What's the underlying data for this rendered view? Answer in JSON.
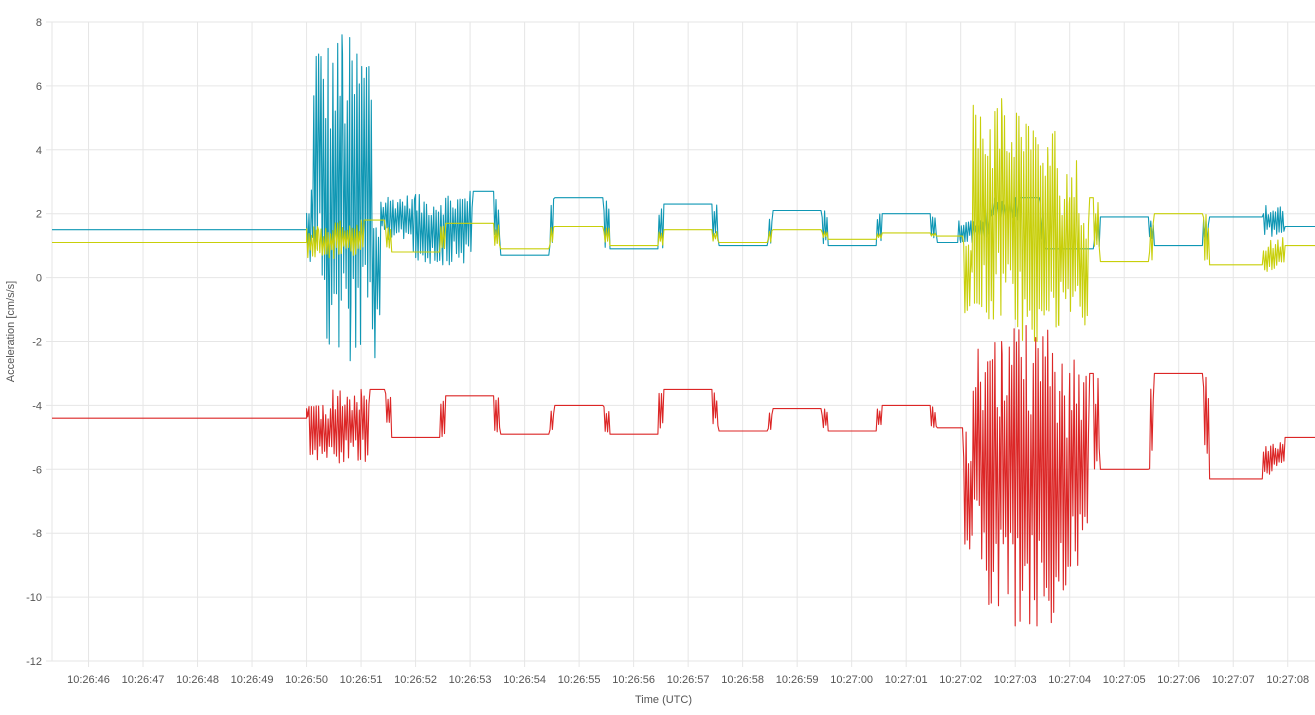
{
  "chart_data": {
    "type": "line",
    "xlabel": "Time (UTC)",
    "ylabel": "Acceleration [cm/s/s]",
    "ylim": [
      -12,
      8
    ],
    "xlim": [
      "10:26:45.33",
      "10:27:08.50"
    ],
    "y_ticks": [
      8,
      6,
      4,
      2,
      0,
      -2,
      -4,
      -6,
      -8,
      -10,
      -12
    ],
    "y_tick_labels": [
      "8",
      "6",
      "4",
      "2",
      "0",
      "-2",
      "-4",
      "-6",
      "-8",
      "-10",
      "-12"
    ],
    "x_tick_labels": [
      "10:26:46",
      "10:26:47",
      "10:26:48",
      "10:26:49",
      "10:26:50",
      "10:26:51",
      "10:26:52",
      "10:26:53",
      "10:26:54",
      "10:26:55",
      "10:26:56",
      "10:26:57",
      "10:26:58",
      "10:26:59",
      "10:27:00",
      "10:27:01",
      "10:27:02",
      "10:27:03",
      "10:27:04",
      "10:27:05",
      "10:27:06",
      "10:27:07",
      "10:27:08"
    ],
    "grid": true,
    "legend": "none",
    "series": [
      {
        "color": "#0f97b4",
        "x": [
          "10:26:45.33",
          "10:26:50.00",
          "10:26:50.20",
          "10:26:50.40",
          "10:26:50.60",
          "10:26:50.65",
          "10:26:50.80",
          "10:26:51.00",
          "10:26:51.50",
          "10:26:52.00",
          "10:26:52.50",
          "10:26:53.00",
          "10:26:54.00",
          "10:26:55.00",
          "10:26:56.00",
          "10:26:57.00",
          "10:26:58.00",
          "10:26:59.00",
          "10:27:00.00",
          "10:27:01.00",
          "10:27:02.00",
          "10:27:02.50",
          "10:27:03.00",
          "10:27:04.00",
          "10:27:05.00",
          "10:27:06.00",
          "10:27:07.00",
          "10:27:08.50"
        ],
        "values": [
          1.5,
          1.5,
          2.2,
          0.5,
          3.0,
          7.6,
          -2.6,
          2.5,
          1.2,
          2.6,
          0.4,
          2.7,
          0.7,
          2.5,
          0.9,
          2.3,
          1.0,
          2.1,
          1.0,
          2.0,
          1.1,
          1.8,
          2.5,
          0.9,
          1.9,
          1.0,
          1.9,
          1.6
        ]
      },
      {
        "color": "#c8cf0a",
        "x": [
          "10:26:45.33",
          "10:26:50.00",
          "10:26:50.20",
          "10:26:50.50",
          "10:26:51.00",
          "10:26:52.00",
          "10:26:53.00",
          "10:26:54.00",
          "10:26:55.00",
          "10:26:56.00",
          "10:26:57.00",
          "10:26:58.00",
          "10:26:59.00",
          "10:27:00.00",
          "10:27:01.00",
          "10:27:02.00",
          "10:27:02.60",
          "10:27:02.75",
          "10:27:03.00",
          "10:27:03.20",
          "10:27:03.40",
          "10:27:03.60",
          "10:27:03.80",
          "10:27:04.00",
          "10:27:05.00",
          "10:27:06.00",
          "10:27:07.00",
          "10:27:08.50"
        ],
        "values": [
          1.1,
          1.1,
          1.6,
          0.6,
          1.8,
          0.8,
          1.7,
          0.9,
          1.6,
          1.0,
          1.5,
          1.1,
          1.5,
          1.2,
          1.4,
          1.3,
          -1.3,
          5.6,
          -1.0,
          4.8,
          -2.0,
          3.8,
          -1.5,
          2.5,
          0.5,
          2.0,
          0.4,
          1.0
        ]
      },
      {
        "color": "#dc2626",
        "x": [
          "10:26:45.33",
          "10:26:50.00",
          "10:26:50.30",
          "10:26:50.60",
          "10:26:51.00",
          "10:26:52.00",
          "10:26:53.00",
          "10:26:54.00",
          "10:26:55.00",
          "10:26:56.00",
          "10:26:57.00",
          "10:26:58.00",
          "10:26:59.00",
          "10:27:00.00",
          "10:27:01.00",
          "10:27:02.00",
          "10:27:02.60",
          "10:27:02.75",
          "10:27:03.00",
          "10:27:03.20",
          "10:27:03.40",
          "10:27:03.60",
          "10:27:03.80",
          "10:27:04.00",
          "10:27:05.00",
          "10:27:06.00",
          "10:27:07.00",
          "10:27:08.50"
        ],
        "values": [
          -4.4,
          -4.4,
          -4.0,
          -5.8,
          -3.5,
          -5.0,
          -3.7,
          -4.9,
          -4.0,
          -4.9,
          -3.5,
          -4.8,
          -4.1,
          -4.8,
          -4.0,
          -4.7,
          -9.2,
          -2.0,
          -10.9,
          -1.5,
          -10.9,
          -2.5,
          -9.5,
          -3.0,
          -6.0,
          -3.0,
          -6.3,
          -5.0
        ]
      }
    ]
  }
}
